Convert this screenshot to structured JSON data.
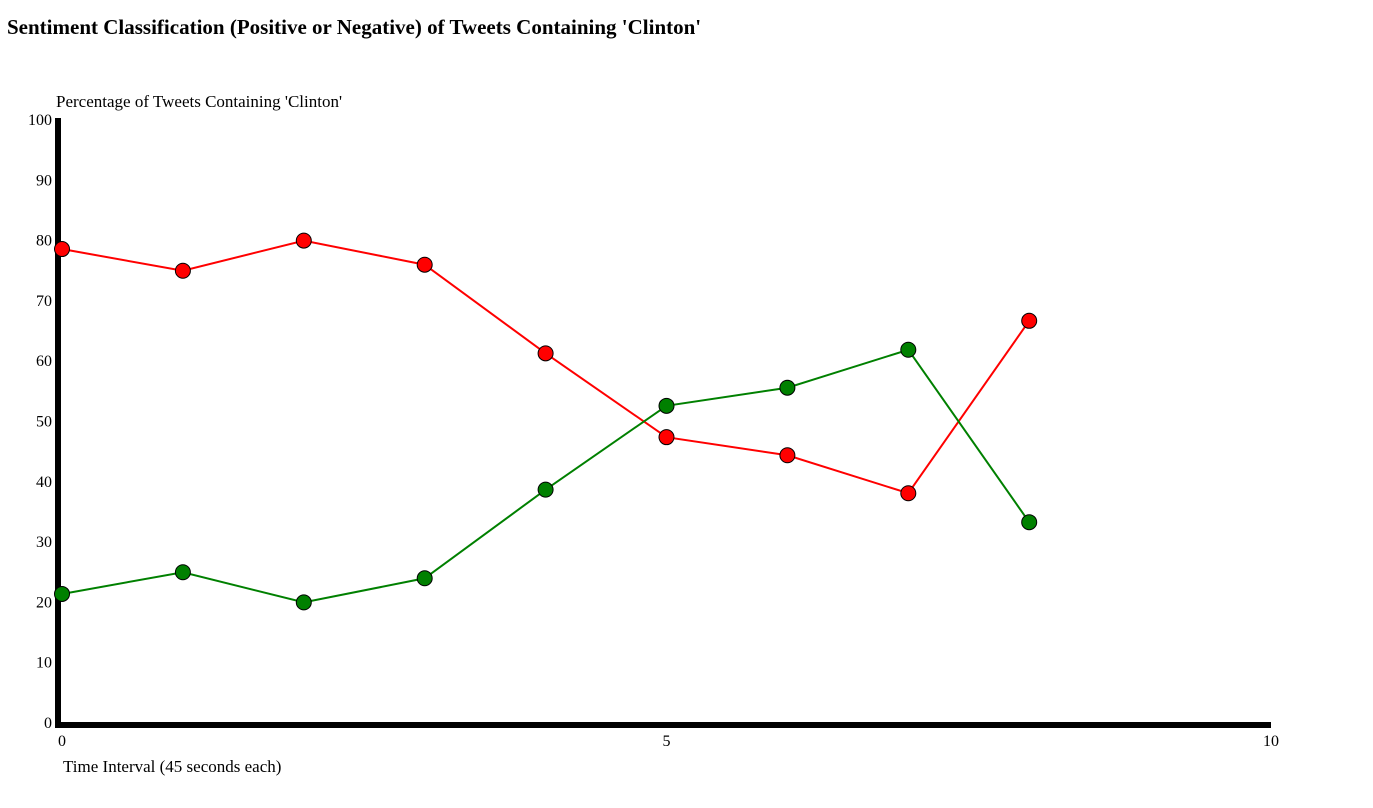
{
  "chart_data": {
    "type": "line",
    "title": "Sentiment Classification (Positive or Negative) of Tweets Containing 'Clinton'",
    "ylabel": "Percentage of Tweets Containing 'Clinton'",
    "xlabel": "Time Interval (45 seconds each)",
    "xlim": [
      0,
      10
    ],
    "ylim": [
      0,
      100
    ],
    "x_ticks": [
      0,
      5,
      10
    ],
    "y_ticks": [
      0,
      10,
      20,
      30,
      40,
      50,
      60,
      70,
      80,
      90,
      100
    ],
    "grid": false,
    "x": [
      0,
      1,
      2,
      3,
      4,
      5,
      6,
      7,
      8
    ],
    "series": [
      {
        "color": "#ff0000",
        "values": [
          78.6,
          75.0,
          80.0,
          76.0,
          61.3,
          47.4,
          44.4,
          38.1,
          66.7
        ]
      },
      {
        "color": "#008000",
        "values": [
          21.4,
          25.0,
          20.0,
          24.0,
          38.7,
          52.6,
          55.6,
          61.9,
          33.3
        ]
      }
    ]
  }
}
